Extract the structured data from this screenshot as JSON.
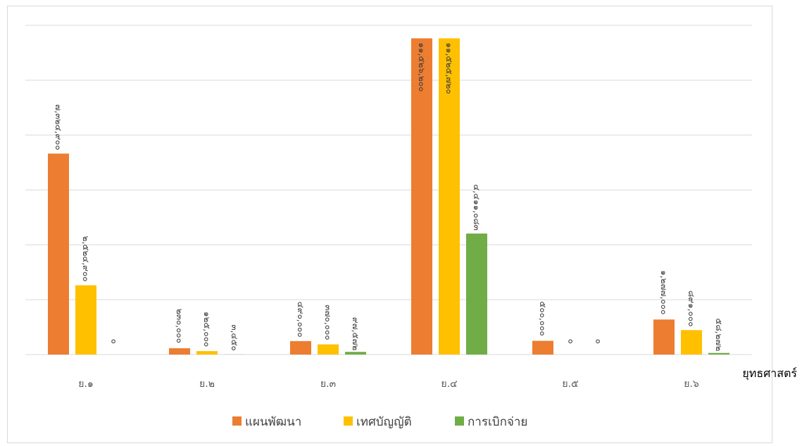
{
  "chart_data": {
    "type": "bar",
    "title": "",
    "xlabel": "ยุทธศาสตร์",
    "ylabel": "",
    "categories": [
      "ย.๑",
      "ย.๒",
      "ย.๓",
      "ย.๔",
      "ย.๕",
      "ย.๖"
    ],
    "series": [
      {
        "name": "แผนพัฒนา",
        "color": "#ed7d31",
        "values": [
          7324900,
          230000,
          490000,
          11526200,
          500000,
          1277000
        ],
        "labels": [
          "๗,๓๒๔,๙๐๐",
          "๒๓๐,๐๐๐",
          "๔๙๐,๐๐๐",
          "๑๑,๕๒๖,๒๐๐",
          "๕๐๐,๐๐๐",
          "๑,๒๗๗,๐๐๐"
        ]
      },
      {
        "name": "เทศบัญญัติ",
        "color": "#ffc000",
        "values": [
          2524900,
          125000,
          370000,
          11525720,
          0,
          891000
        ],
        "labels": [
          "๒,๕๒๔,๙๐๐",
          "๑๒๕,๐๐๐",
          "๓๗๐,๐๐๐",
          "๑๑,๕๒๕,๗๒๐",
          "๐",
          "๘๙๑,๐๐๐"
        ]
      },
      {
        "name": "การเบิกจ่าย",
        "color": "#70ad47",
        "values": [
          0,
          3450,
          97572,
          4411083,
          0,
          58272
        ],
        "labels": [
          "๐",
          "๓,๔๕๐",
          "๙๗,๕๗๒",
          "๔,๔๑๑,๐๘๓",
          "๐",
          "๕๘,๒๗๒"
        ]
      }
    ],
    "ylim": [
      0,
      12000000
    ],
    "y_gridline_step": 2000000,
    "y_tick_labels_shown": false,
    "grid": true,
    "legend_position": "bottom"
  }
}
